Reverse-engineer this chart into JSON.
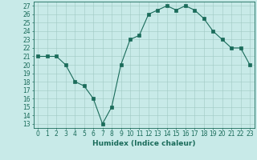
{
  "x": [
    0,
    1,
    2,
    3,
    4,
    5,
    6,
    7,
    8,
    9,
    10,
    11,
    12,
    13,
    14,
    15,
    16,
    17,
    18,
    19,
    20,
    21,
    22,
    23
  ],
  "y": [
    21,
    21,
    21,
    20,
    18,
    17.5,
    16,
    13,
    15,
    20,
    23,
    23.5,
    26,
    26.5,
    27,
    26.5,
    27,
    26.5,
    25.5,
    24,
    23,
    22,
    22,
    20
  ],
  "line_color": "#1a6b5a",
  "marker": "s",
  "marker_size": 2.5,
  "bg_color": "#c8eae8",
  "grid_color": "#a0c8c4",
  "xlabel": "Humidex (Indice chaleur)",
  "xlim": [
    -0.5,
    23.5
  ],
  "ylim": [
    12.5,
    27.5
  ],
  "yticks": [
    13,
    14,
    15,
    16,
    17,
    18,
    19,
    20,
    21,
    22,
    23,
    24,
    25,
    26,
    27
  ],
  "xticks": [
    0,
    1,
    2,
    3,
    4,
    5,
    6,
    7,
    8,
    9,
    10,
    11,
    12,
    13,
    14,
    15,
    16,
    17,
    18,
    19,
    20,
    21,
    22,
    23
  ],
  "tick_color": "#1a6b5a",
  "label_fontsize": 6.5,
  "tick_fontsize": 5.5
}
